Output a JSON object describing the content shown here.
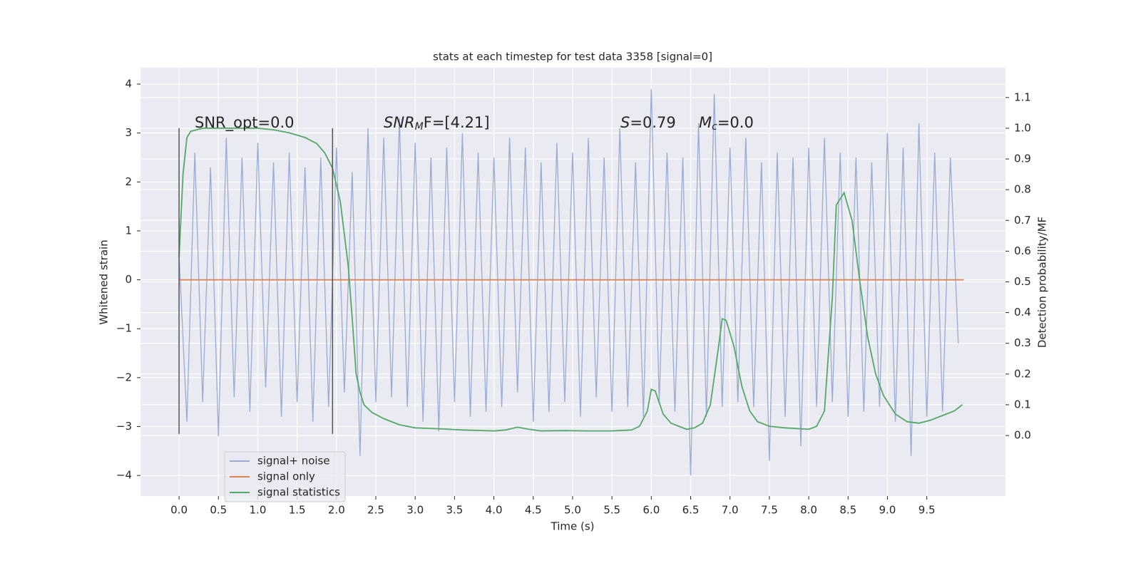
{
  "chart_data": {
    "type": "line",
    "title": "stats at each timestep for test data 3358 [signal=0]",
    "xlabel": "Time (s)",
    "ylabel": "Whitened strain",
    "y2label": "Detection probability/MF",
    "xlim": [
      -0.49,
      10.5
    ],
    "ylim": [
      -4.42,
      4.335
    ],
    "y2lim": [
      -0.197,
      1.197
    ],
    "xticks": [
      {
        "value": 0,
        "label": "0.0"
      },
      0.5,
      {
        "value": 1,
        "label": "1.0"
      },
      1.5,
      {
        "value": 2,
        "label": "2.0"
      },
      2.5,
      {
        "value": 3,
        "label": "3.0"
      },
      3.5,
      {
        "value": 4,
        "label": "4.0"
      },
      4.5,
      {
        "value": 5,
        "label": "5.0"
      },
      5.5,
      {
        "value": 6,
        "label": "6.0"
      },
      6.5,
      {
        "value": 7,
        "label": "7.0"
      },
      7.5,
      {
        "value": 8,
        "label": "8.0"
      },
      8.5,
      {
        "value": 9,
        "label": "9.0"
      },
      9.5
    ],
    "yticks": [
      {
        "value": -4,
        "label": "−4"
      },
      {
        "value": -3,
        "label": "−3"
      },
      {
        "value": -2,
        "label": "−2"
      },
      {
        "value": -1,
        "label": "−1"
      },
      0,
      1,
      2,
      3,
      4
    ],
    "y2ticks": [
      {
        "value": 0,
        "label": "0.0"
      },
      0.1,
      0.2,
      0.3,
      0.4,
      0.5,
      0.6,
      0.7,
      0.8,
      0.9,
      {
        "value": 1,
        "label": "1.0"
      },
      1.1
    ],
    "grid": true,
    "legend": "lower left",
    "vlines": [
      0,
      1.95
    ],
    "vline_span": [
      -3.15,
      3.1
    ],
    "annotations": [
      [
        "SNR_opt=0.0"
      ],
      [
        "SNR",
        "M",
        "F=[4.21]"
      ],
      [
        "S",
        "=0.79"
      ],
      [
        "M",
        "c",
        "=0.0"
      ]
    ],
    "series": [
      {
        "name": "signal+ noise",
        "color": "#9aabd1",
        "x": [
          0,
          0.1,
          0.2,
          0.3,
          0.4,
          0.5,
          0.6,
          0.7,
          0.8,
          0.9,
          1,
          1.1,
          1.2,
          1.3,
          1.4,
          1.5,
          1.6,
          1.7,
          1.8,
          1.9,
          2,
          2.1,
          2.2,
          2.3,
          2.4,
          2.5,
          2.6,
          2.7,
          2.8,
          2.9,
          3,
          3.1,
          3.2,
          3.3,
          3.4,
          3.5,
          3.6,
          3.7,
          3.8,
          3.9,
          4,
          4.1,
          4.2,
          4.3,
          4.4,
          4.5,
          4.6,
          4.7,
          4.8,
          4.9,
          5,
          5.1,
          5.2,
          5.3,
          5.4,
          5.5,
          5.6,
          5.7,
          5.8,
          5.9,
          6,
          6.1,
          6.2,
          6.3,
          6.4,
          6.5,
          6.6,
          6.7,
          6.8,
          6.9,
          7,
          7.1,
          7.2,
          7.3,
          7.4,
          7.5,
          7.6,
          7.7,
          7.8,
          7.9,
          8,
          8.1,
          8.2,
          8.3,
          8.4,
          8.5,
          8.6,
          8.7,
          8.8,
          8.9,
          9,
          9.1,
          9.2,
          9.3,
          9.4,
          9.5,
          9.6,
          9.7,
          9.8,
          9.9
        ],
        "values": [
          0.5,
          -2.9,
          2.6,
          -2.5,
          2.3,
          -3.2,
          2.9,
          -2.4,
          2.5,
          -2.7,
          2.8,
          -2.2,
          2.4,
          -2.8,
          2.6,
          -2.5,
          2.3,
          -2.9,
          2.5,
          -2.6,
          2.7,
          -2.3,
          2.2,
          -3.6,
          3.1,
          -2.5,
          2.9,
          -2.4,
          3.3,
          -2.6,
          2.8,
          -2.9,
          2.5,
          -3.1,
          2.7,
          -2.5,
          3.0,
          -2.8,
          2.6,
          -2.7,
          2.5,
          -2.6,
          2.9,
          -2.3,
          2.7,
          -2.9,
          2.4,
          -2.7,
          2.8,
          -2.5,
          2.6,
          -2.8,
          2.9,
          -2.4,
          2.5,
          -2.7,
          3.1,
          -2.6,
          2.4,
          -2.8,
          3.9,
          -2.5,
          2.6,
          -2.7,
          2.5,
          -4.0,
          3.2,
          -2.8,
          3.8,
          -2.6,
          2.7,
          -2.5,
          2.9,
          -2.6,
          2.4,
          -3.7,
          2.6,
          -2.8,
          2.5,
          -3.4,
          2.7,
          -2.6,
          2.9,
          -2.5,
          2.6,
          -2.8,
          2.5,
          -2.7,
          2.4,
          -2.6,
          3.0,
          -2.9,
          2.7,
          -3.6,
          3.2,
          -2.8,
          2.6,
          -2.7,
          2.5,
          -1.3
        ]
      },
      {
        "name": "signal only",
        "color": "#dd8452",
        "x": [
          0,
          9.97
        ],
        "values": [
          0,
          0
        ]
      },
      {
        "name": "signal statistics",
        "color": "#55a868",
        "axis": "y2",
        "x": [
          0,
          0.05,
          0.1,
          0.15,
          0.3,
          0.5,
          1,
          1.2,
          1.4,
          1.6,
          1.75,
          1.85,
          1.95,
          2.05,
          2.15,
          2.2,
          2.25,
          2.3,
          2.35,
          2.45,
          2.6,
          2.8,
          3,
          3.3,
          3.6,
          4,
          4.15,
          4.3,
          4.45,
          4.6,
          4.9,
          5.2,
          5.5,
          5.75,
          5.85,
          5.95,
          6,
          6.05,
          6.15,
          6.25,
          6.35,
          6.45,
          6.55,
          6.65,
          6.75,
          6.85,
          6.9,
          6.95,
          7.05,
          7.15,
          7.25,
          7.35,
          7.5,
          7.7,
          8,
          8.1,
          8.2,
          8.3,
          8.35,
          8.45,
          8.55,
          8.65,
          8.75,
          8.85,
          8.95,
          9.1,
          9.25,
          9.4,
          9.55,
          9.7,
          9.85,
          9.95
        ],
        "values": [
          0.58,
          0.85,
          0.97,
          0.99,
          1.0,
          1.0,
          1.0,
          0.995,
          0.985,
          0.97,
          0.95,
          0.92,
          0.87,
          0.76,
          0.55,
          0.38,
          0.2,
          0.14,
          0.1,
          0.075,
          0.055,
          0.035,
          0.025,
          0.022,
          0.018,
          0.015,
          0.018,
          0.027,
          0.02,
          0.015,
          0.016,
          0.015,
          0.015,
          0.018,
          0.03,
          0.08,
          0.15,
          0.145,
          0.07,
          0.04,
          0.03,
          0.02,
          0.025,
          0.04,
          0.1,
          0.28,
          0.38,
          0.375,
          0.29,
          0.16,
          0.08,
          0.045,
          0.03,
          0.025,
          0.02,
          0.03,
          0.08,
          0.45,
          0.75,
          0.79,
          0.7,
          0.5,
          0.32,
          0.2,
          0.13,
          0.07,
          0.045,
          0.04,
          0.05,
          0.065,
          0.08,
          0.1
        ]
      }
    ]
  }
}
